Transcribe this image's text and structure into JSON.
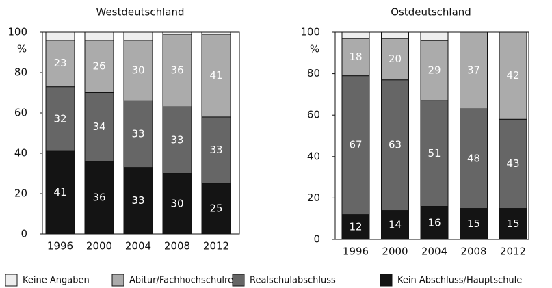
{
  "chart_data": [
    {
      "type": "bar",
      "stacked": true,
      "title": "Westdeutschland",
      "ylabel": "%",
      "categories": [
        "1996",
        "2000",
        "2004",
        "2008",
        "2012"
      ],
      "series": [
        {
          "name": "Kein Abschluss/Hauptschule",
          "color": "#141414",
          "values": [
            41,
            36,
            33,
            30,
            25
          ]
        },
        {
          "name": "Realschulabschluss",
          "color": "#666666",
          "values": [
            32,
            34,
            33,
            33,
            33
          ]
        },
        {
          "name": "Abitur/Fachhochschulreife",
          "color": "#ababab",
          "values": [
            23,
            26,
            30,
            36,
            41
          ]
        },
        {
          "name": "Keine Angaben",
          "color": "#eeeeee",
          "values": [
            4,
            4,
            4,
            1,
            1
          ]
        }
      ],
      "ylim": [
        0,
        100
      ],
      "yticks": [
        0,
        20,
        40,
        60,
        80,
        100
      ],
      "legend": "bottom"
    },
    {
      "type": "bar",
      "stacked": true,
      "title": "Ostdeutschland",
      "ylabel": "%",
      "categories": [
        "1996",
        "2000",
        "2004",
        "2008",
        "2012"
      ],
      "series": [
        {
          "name": "Kein Abschluss/Hauptschule",
          "color": "#141414",
          "values": [
            12,
            14,
            16,
            15,
            15
          ]
        },
        {
          "name": "Realschulabschluss",
          "color": "#666666",
          "values": [
            67,
            63,
            51,
            48,
            43
          ]
        },
        {
          "name": "Abitur/Fachhochschulreife",
          "color": "#ababab",
          "values": [
            18,
            20,
            29,
            37,
            42
          ]
        },
        {
          "name": "Keine Angaben",
          "color": "#eeeeee",
          "values": [
            3,
            3,
            4,
            0,
            0
          ]
        }
      ],
      "ylim": [
        0,
        100
      ],
      "yticks": [
        0,
        20,
        40,
        60,
        80,
        100
      ],
      "legend": "bottom"
    }
  ]
}
